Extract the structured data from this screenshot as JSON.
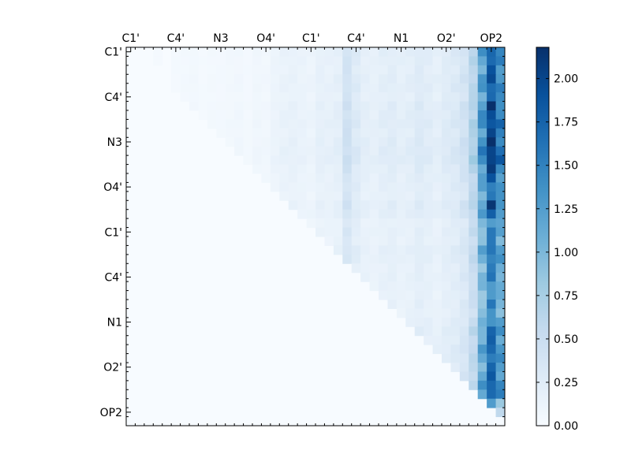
{
  "chart_data": {
    "type": "heatmap",
    "title": "",
    "xlabel": "",
    "ylabel": "",
    "x_tick_labels": [
      "C1'",
      "C4'",
      "N3",
      "O4'",
      "C1'",
      "C4'",
      "N1",
      "O2'",
      "OP2"
    ],
    "y_tick_labels": [
      "C1'",
      "C4'",
      "N3",
      "O4'",
      "C1'",
      "C4'",
      "N1",
      "O2'",
      "OP2"
    ],
    "tick_label_position_x": "top",
    "n_rows": 42,
    "n_cols": 42,
    "colormap": [
      "#f7fbff",
      "#deebf7",
      "#c6dbef",
      "#9ecae1",
      "#6baed6",
      "#4292c6",
      "#2171b5",
      "#08519c",
      "#08306b"
    ],
    "colorbar": {
      "vmin": 0.0,
      "vmax": 2.18,
      "tick_values": [
        0.0,
        0.25,
        0.5,
        0.75,
        1.0,
        1.25,
        1.5,
        1.75,
        2.0
      ],
      "tick_labels": [
        "0.00",
        "0.25",
        "0.50",
        "0.75",
        "1.00",
        "1.25",
        "1.50",
        "1.75",
        "2.00"
      ],
      "placement": "right"
    },
    "column_profile": [
      0,
      0,
      0.02,
      0.03,
      0.02,
      0.04,
      0.05,
      0.06,
      0.04,
      0.05,
      0.05,
      0.06,
      0.07,
      0.05,
      0.08,
      0.07,
      0.12,
      0.15,
      0.16,
      0.14,
      0.12,
      0.18,
      0.17,
      0.2,
      0.42,
      0.28,
      0.2,
      0.18,
      0.22,
      0.24,
      0.2,
      0.22,
      0.28,
      0.24,
      0.2,
      0.26,
      0.3,
      0.4,
      0.65,
      1.25,
      1.9,
      1.45
    ],
    "row_scale": [
      1.0,
      0.95,
      0.9,
      1.0,
      1.0,
      0.9,
      1.05,
      1.05,
      1.1,
      1.0,
      1.1,
      1.15,
      1.15,
      1.0,
      0.95,
      0.9,
      0.85,
      1.0,
      0.95,
      0.75,
      0.8,
      0.75,
      0.9,
      0.85,
      0.75,
      0.8,
      0.75,
      0.7,
      0.75,
      0.7,
      0.8,
      0.9,
      0.85,
      0.95,
      0.9,
      0.85,
      0.9,
      1.0,
      0.95,
      0.6,
      0.45,
      0.3
    ],
    "upper_triangle_only": true
  }
}
